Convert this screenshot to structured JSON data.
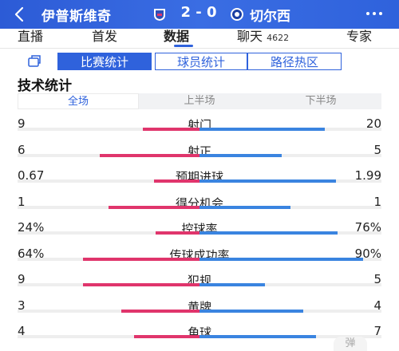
{
  "header": {
    "home_team": "伊普斯维奇",
    "away_team": "切尔西",
    "score": "2 - 0",
    "back_icon": "chevron-left-icon",
    "more_icon": "more-dots-icon",
    "colors": {
      "header_bg": "#2f62dc",
      "home_bar": "#e0356c",
      "away_bar": "#3a84e0"
    }
  },
  "tabs": [
    {
      "label": "直播"
    },
    {
      "label": "首发"
    },
    {
      "label": "数据",
      "active": true
    },
    {
      "label": "聊天",
      "sub": "4622"
    },
    {
      "label": "专家"
    }
  ],
  "segments": [
    "比赛统计",
    "球员统计",
    "路径热区"
  ],
  "section_title": "技术统计",
  "halves": [
    "全场",
    "上半场",
    "下半场"
  ],
  "stats": [
    {
      "label": "射门",
      "home": "9",
      "away": "20",
      "home_ratio": 0.31,
      "away_ratio": 0.69
    },
    {
      "label": "射正",
      "home": "6",
      "away": "5",
      "home_ratio": 0.55,
      "away_ratio": 0.45
    },
    {
      "label": "预期进球",
      "home": "0.67",
      "away": "1.99",
      "home_ratio": 0.25,
      "away_ratio": 0.75
    },
    {
      "label": "得分机会",
      "home": "1",
      "away": "1",
      "home_ratio": 0.5,
      "away_ratio": 0.5
    },
    {
      "label": "控球率",
      "home": "24%",
      "away": "76%",
      "home_ratio": 0.24,
      "away_ratio": 0.76
    },
    {
      "label": "传球成功率",
      "home": "64%",
      "away": "90%",
      "home_ratio": 0.64,
      "away_ratio": 0.9
    },
    {
      "label": "犯规",
      "home": "9",
      "away": "5",
      "home_ratio": 0.64,
      "away_ratio": 0.36
    },
    {
      "label": "黄牌",
      "home": "3",
      "away": "4",
      "home_ratio": 0.43,
      "away_ratio": 0.57
    },
    {
      "label": "角球",
      "home": "4",
      "away": "7",
      "home_ratio": 0.36,
      "away_ratio": 0.64
    }
  ],
  "float_button": "弹"
}
